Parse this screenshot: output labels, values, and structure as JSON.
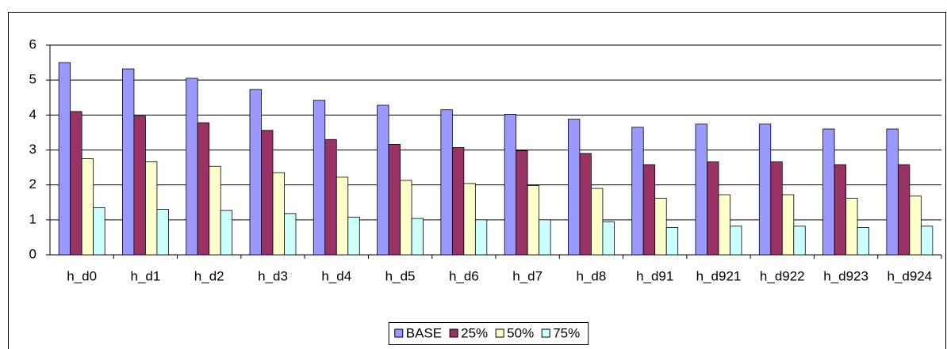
{
  "chart_data": {
    "type": "bar",
    "categories": [
      "h_d0",
      "h_d1",
      "h_d2",
      "h_d3",
      "h_d4",
      "h_d5",
      "h_d6",
      "h_d7",
      "h_d8",
      "h_d91",
      "h_d921",
      "h_d922",
      "h_d923",
      "h_d924"
    ],
    "series": [
      {
        "name": "BASE",
        "color": "#9999ff",
        "values": [
          5.5,
          5.32,
          5.05,
          4.73,
          4.42,
          4.28,
          4.15,
          4.02,
          3.88,
          3.65,
          3.74,
          3.74,
          3.6,
          3.6
        ]
      },
      {
        "name": "25%",
        "color": "#993366",
        "values": [
          4.1,
          3.97,
          3.78,
          3.56,
          3.3,
          3.16,
          3.07,
          2.98,
          2.9,
          2.58,
          2.66,
          2.66,
          2.58,
          2.58
        ]
      },
      {
        "name": "50%",
        "color": "#ffffcc",
        "values": [
          2.75,
          2.66,
          2.53,
          2.35,
          2.22,
          2.13,
          2.04,
          1.98,
          1.9,
          1.62,
          1.72,
          1.72,
          1.62,
          1.68
        ]
      },
      {
        "name": "75%",
        "color": "#ccffff",
        "values": [
          1.35,
          1.3,
          1.27,
          1.18,
          1.08,
          1.04,
          1.0,
          1.0,
          0.95,
          0.78,
          0.82,
          0.82,
          0.78,
          0.82
        ]
      }
    ],
    "ylim": [
      0,
      6
    ],
    "yticks": [
      0,
      1,
      2,
      3,
      4,
      5,
      6
    ],
    "grid": true,
    "legend": "bottom"
  }
}
